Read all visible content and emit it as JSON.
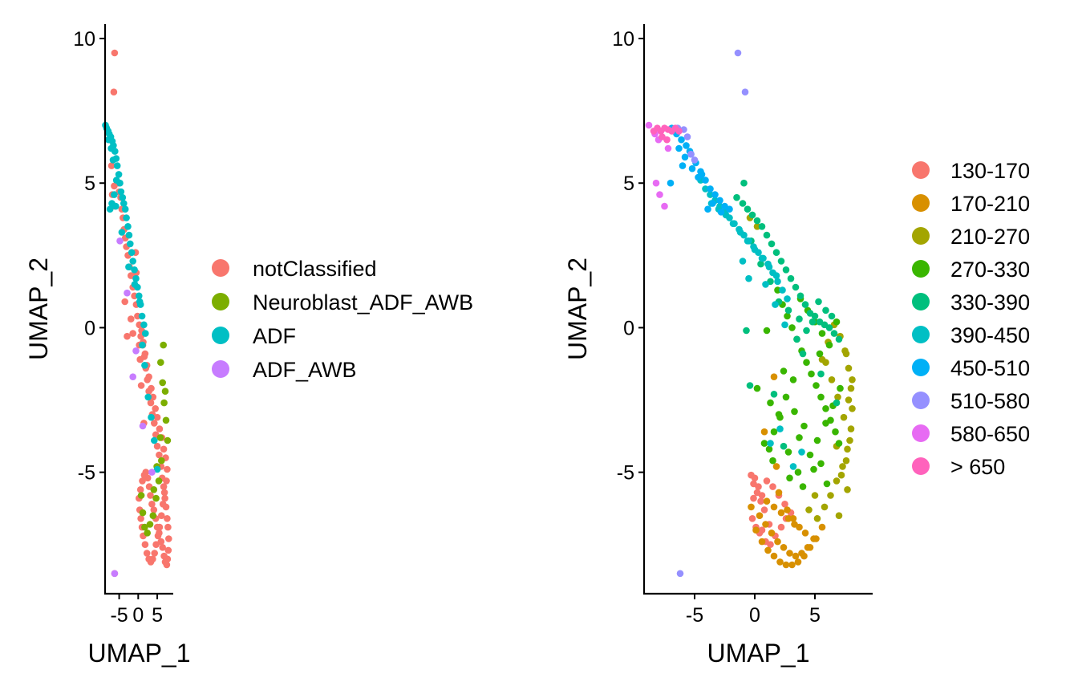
{
  "chart_data": [
    {
      "type": "scatter",
      "title": "",
      "xlabel": "UMAP_1",
      "ylabel": "UMAP_2",
      "xlim": [
        -8.7,
        9.2
      ],
      "ylim": [
        -9.2,
        10.5
      ],
      "xticks": [
        -5,
        0,
        5
      ],
      "xtick_labels": [
        "-5",
        "0",
        "5"
      ],
      "yticks": [
        -5,
        0,
        5,
        10
      ],
      "ytick_labels": [
        "-5",
        "0",
        "5",
        "10"
      ],
      "grid": false,
      "legend_position": "right",
      "legend": [
        {
          "label": "notClassified",
          "color": "#F8766D"
        },
        {
          "label": "Neuroblast_ADF_AWB",
          "color": "#7CAE00"
        },
        {
          "label": "ADF",
          "color": "#00BFC4"
        },
        {
          "label": "ADF_AWB",
          "color": "#C77CFF"
        }
      ],
      "series": [
        {
          "name": "notClassified",
          "color": "#F8766D",
          "x": [
            -6.2,
            -6.4,
            -7.0,
            -6.3,
            -6.8,
            -6.1,
            -5.2,
            -5.0,
            -4.6,
            -4.3,
            -4.0,
            -3.7,
            -3.4,
            -3.1,
            -2.7,
            -2.3,
            -1.9,
            -1.4,
            -1.0,
            -0.5,
            -0.2,
            0.3,
            0.7,
            1.2,
            1.6,
            2.0,
            2.4,
            2.8,
            3.3,
            3.7,
            4.2,
            4.6,
            5.0,
            5.5,
            6.0,
            6.3,
            6.7,
            7.0,
            7.3,
            7.6,
            7.8,
            8.0,
            7.9,
            7.7,
            7.5,
            7.1,
            6.8,
            6.4,
            6.0,
            5.5,
            5.0,
            4.6,
            4.1,
            3.6,
            3.2,
            2.9,
            2.5,
            2.0,
            1.6,
            1.1,
            0.6,
            0.2,
            0.4,
            0.7,
            1.0,
            1.3,
            1.8,
            2.3,
            2.8,
            3.3,
            3.8,
            4.3,
            4.7,
            5.2,
            5.6,
            6.1,
            6.5,
            6.9,
            7.4,
            7.6,
            7.2,
            6.7,
            6.2,
            5.6,
            5.0,
            4.5,
            3.9,
            3.4,
            2.8,
            2.3,
            1.8,
            1.3,
            0.9,
            -1.4,
            -6.2,
            -3.5,
            -2.9,
            -1.9,
            0.3,
            0.5,
            -0.5,
            -0.7,
            0.8,
            1.5
          ],
          "y": [
            9.5,
            8.15,
            5.6,
            4.9,
            4.6,
            4.2,
            5.0,
            4.7,
            4.5,
            4.1,
            3.8,
            3.4,
            3.1,
            2.8,
            2.5,
            2.1,
            1.8,
            1.4,
            1.1,
            0.8,
            0.4,
            0.1,
            -0.3,
            -0.6,
            -1.0,
            -1.4,
            -1.8,
            -2.2,
            -2.6,
            -3.0,
            -3.3,
            -3.7,
            -4.1,
            -4.4,
            -4.8,
            -5.2,
            -5.5,
            -5.9,
            -6.2,
            -6.6,
            -6.9,
            -7.3,
            -7.7,
            -8.0,
            -8.2,
            -8.1,
            -7.9,
            -7.6,
            -7.4,
            -7.1,
            -6.9,
            -6.6,
            -6.3,
            -6.1,
            -5.8,
            -5.5,
            -5.2,
            -5.0,
            -5.1,
            -5.3,
            -5.6,
            -5.9,
            -6.3,
            -6.6,
            -6.9,
            -7.2,
            -7.5,
            -7.8,
            -8.0,
            -8.1,
            -8.0,
            -7.8,
            -7.5,
            -7.2,
            -6.9,
            -6.5,
            -6.1,
            -5.7,
            -5.3,
            -4.9,
            -4.5,
            -4.2,
            -3.8,
            -3.5,
            -3.1,
            -2.8,
            -2.4,
            -2.1,
            -1.7,
            -1.3,
            -0.9,
            -0.5,
            -0.1,
            -0.2,
            -8.5,
            0.9,
            -0.3,
            0.3,
            -0.6,
            -1.1,
            1.9,
            2.6,
            -2.0,
            -3.3
          ]
        },
        {
          "name": "Neuroblast_ADF_AWB",
          "color": "#7CAE00",
          "x": [
            5.9,
            6.4,
            6.8,
            7.3,
            7.7,
            6.1,
            5.4,
            4.7,
            3.9,
            3.1,
            2.4,
            1.7,
            1.2,
            0.8,
            6.6,
            7.1,
            5.8,
            4.9,
            4.1
          ],
          "y": [
            -1.2,
            -1.9,
            -2.6,
            -3.2,
            -3.9,
            -4.6,
            -5.3,
            -5.9,
            -6.5,
            -6.8,
            -7.1,
            -6.9,
            -6.4,
            -5.8,
            -0.6,
            -2.2,
            -3.8,
            -4.8,
            -5.6
          ]
        },
        {
          "name": "ADF",
          "color": "#00BFC4",
          "x": [
            -8.6,
            -8.3,
            -7.9,
            -7.6,
            -7.2,
            -6.8,
            -6.5,
            -6.1,
            -5.8,
            -5.5,
            -5.1,
            -4.8,
            -4.5,
            -4.1,
            -3.8,
            -3.4,
            -3.1,
            -2.7,
            -2.4,
            -2.1,
            -1.7,
            -1.4,
            -1.0,
            -0.6,
            -0.2,
            0.2,
            0.6,
            1.0,
            1.5,
            1.9,
            -7.4,
            -6.9,
            -6.3,
            -5.7,
            -7.8,
            -5.9,
            -4.3,
            -2.5,
            -0.9,
            0.4,
            1.1,
            1.7,
            2.6,
            3.4,
            4.2,
            5.0,
            -7.1,
            -6.6
          ],
          "y": [
            7.0,
            6.9,
            6.8,
            6.7,
            6.6,
            6.45,
            6.3,
            6.1,
            5.85,
            5.6,
            5.3,
            5.0,
            4.7,
            4.5,
            4.3,
            4.1,
            3.8,
            3.5,
            3.2,
            2.9,
            2.6,
            2.3,
            2.0,
            1.7,
            1.4,
            1.1,
            0.8,
            0.4,
            0.1,
            -0.2,
            4.1,
            4.3,
            4.6,
            5.1,
            6.5,
            4.2,
            3.3,
            2.1,
            1.5,
            0.9,
            -0.6,
            -1.3,
            -2.4,
            -3.1,
            -3.9,
            -4.9,
            6.2,
            5.8
          ]
        },
        {
          "name": "ADF_AWB",
          "color": "#C77CFF",
          "x": [
            -1.4,
            -4.8,
            -2.9,
            -0.6,
            1.2,
            3.6,
            -6.2
          ],
          "y": [
            -1.7,
            3.0,
            1.2,
            -0.8,
            -3.4,
            -5.0,
            -8.5
          ]
        }
      ]
    },
    {
      "type": "scatter",
      "title": "",
      "xlabel": "UMAP_1",
      "ylabel": "UMAP_2",
      "xlim": [
        -9.2,
        9.8
      ],
      "ylim": [
        -9.2,
        10.5
      ],
      "xticks": [
        -5,
        0,
        5
      ],
      "xtick_labels": [
        "-5",
        "0",
        "5"
      ],
      "yticks": [
        -5,
        0,
        5,
        10
      ],
      "ytick_labels": [
        "-5",
        "0",
        "5",
        "10"
      ],
      "grid": false,
      "legend_position": "right",
      "legend": [
        {
          "label": "130-170",
          "color": "#F8766D"
        },
        {
          "label": "170-210",
          "color": "#D89000"
        },
        {
          "label": "210-270",
          "color": "#A3A500"
        },
        {
          "label": "270-330",
          "color": "#39B600"
        },
        {
          "label": "330-390",
          "color": "#00BF7D"
        },
        {
          "label": "390-450",
          "color": "#00BFC4"
        },
        {
          "label": "450-510",
          "color": "#00B0F6"
        },
        {
          "label": "510-580",
          "color": "#9590FF"
        },
        {
          "label": "580-650",
          "color": "#E76BF3"
        },
        {
          "label": "> 650",
          "color": "#FF62BC"
        }
      ],
      "series": [
        {
          "name": "130-170",
          "color": "#F8766D",
          "x": [
            -0.3,
            -0.1,
            0.2,
            0.5,
            0.8,
            -0.2,
            0.1,
            0.4,
            0.9,
            1.3,
            1.7,
            2.2,
            2.6,
            0.0,
            0.3,
            0.6,
            1.0,
            1.5,
            2.0,
            2.5,
            3.0,
            1.2,
            0.6,
            -0.1
          ],
          "y": [
            -5.1,
            -5.4,
            -5.7,
            -6.0,
            -6.3,
            -6.6,
            -6.9,
            -7.1,
            -7.4,
            -7.5,
            -7.2,
            -6.9,
            -6.6,
            -5.2,
            -5.5,
            -5.8,
            -5.3,
            -5.5,
            -5.8,
            -6.1,
            -6.4,
            -6.8,
            -7.0,
            -5.9
          ]
        },
        {
          "name": "170-210",
          "color": "#D89000",
          "x": [
            0.1,
            0.6,
            1.1,
            1.6,
            2.1,
            2.6,
            3.1,
            3.6,
            4.1,
            4.6,
            5.1,
            5.6,
            0.4,
            0.9,
            1.4,
            1.9,
            2.4,
            2.9,
            3.4,
            3.9,
            4.4,
            4.9,
            2.7,
            3.2,
            3.7,
            4.2,
            1.0,
            1.6,
            2.2,
            2.8,
            3.3,
            2.0,
            1.8,
            0.8,
            1.6,
            -0.3
          ],
          "y": [
            -7.0,
            -7.4,
            -7.7,
            -7.9,
            -8.1,
            -8.2,
            -8.2,
            -8.1,
            -7.9,
            -7.6,
            -7.3,
            -6.9,
            -6.5,
            -6.8,
            -7.1,
            -7.4,
            -7.6,
            -7.8,
            -7.9,
            -7.8,
            -7.6,
            -7.3,
            -6.3,
            -6.6,
            -6.9,
            -7.1,
            -6.0,
            -6.2,
            -6.4,
            -6.6,
            -6.8,
            -5.7,
            -4.8,
            -3.6,
            -1.7,
            -6.2
          ]
        },
        {
          "name": "210-270",
          "color": "#A3A500",
          "x": [
            5.2,
            5.8,
            6.3,
            6.8,
            7.3,
            7.7,
            8.0,
            8.1,
            8.0,
            7.8,
            7.5,
            7.1,
            6.6,
            6.1,
            5.6,
            7.2,
            7.6,
            7.9,
            7.4,
            6.9,
            6.4,
            5.9,
            7.8,
            8.1,
            7.6,
            6.8,
            -0.4,
            0.2,
            5.0,
            4.5,
            7.0,
            7.7
          ],
          "y": [
            -6.6,
            -6.2,
            -5.8,
            -5.3,
            -4.8,
            -4.2,
            -3.5,
            -2.8,
            -2.1,
            -1.4,
            -0.8,
            -0.3,
            0.1,
            -0.5,
            -1.1,
            -5.1,
            -4.6,
            -3.9,
            -3.1,
            -2.4,
            -1.8,
            -1.2,
            -2.5,
            -1.8,
            -0.9,
            -4.1,
            3.8,
            3.5,
            -5.8,
            -6.3,
            -6.5,
            -5.6
          ]
        },
        {
          "name": "270-330",
          "color": "#39B600",
          "x": [
            1.9,
            2.3,
            2.7,
            3.1,
            3.5,
            3.9,
            4.3,
            4.7,
            5.1,
            5.5,
            5.9,
            6.3,
            6.7,
            7.0,
            6.2,
            5.6,
            5.0,
            4.4,
            3.8,
            3.2,
            2.6,
            2.0,
            1.6,
            1.2,
            4.6,
            5.2,
            5.9,
            6.5,
            7.1,
            3.6,
            4.0,
            2.9,
            1.5,
            0.8,
            2.4,
            3.3,
            4.1,
            4.9,
            5.5,
            6.0,
            1.0,
            0.2,
            1.3,
            2.1,
            2.8,
            3.7,
            6.8,
            5.4
          ],
          "y": [
            1.3,
            0.8,
            0.4,
            0.0,
            -0.4,
            -0.8,
            -1.2,
            -1.6,
            -2.0,
            -2.4,
            -2.8,
            -3.2,
            -3.6,
            -4.0,
            -0.6,
            -0.2,
            0.2,
            0.6,
            1.0,
            -1.8,
            -2.4,
            -3.0,
            -3.6,
            -4.2,
            -4.4,
            -3.9,
            -3.3,
            -2.7,
            -2.1,
            -5.0,
            -5.5,
            -5.2,
            -4.6,
            -4.0,
            -1.5,
            -2.9,
            -3.4,
            -4.9,
            -4.7,
            -5.4,
            -0.1,
            -2.1,
            -2.6,
            -3.1,
            -4.3,
            -3.8,
            0.2,
            -0.9
          ]
        },
        {
          "name": "330-390",
          "color": "#00BF7D",
          "x": [
            -1.5,
            -1.0,
            -0.6,
            -0.2,
            0.2,
            0.6,
            1.0,
            1.4,
            1.8,
            2.2,
            2.6,
            3.0,
            3.4,
            3.8,
            4.2,
            4.6,
            5.0,
            5.4,
            5.8,
            6.2,
            6.6,
            7.0,
            6.4,
            5.9,
            5.3,
            4.8,
            4.3,
            3.7,
            -0.9,
            -0.3,
            0.5,
            1.3,
            2.0,
            2.8,
            3.5,
            4.0,
            5.5,
            6.8,
            -0.7,
            -0.4,
            1.6,
            2.4
          ],
          "y": [
            4.5,
            4.3,
            4.1,
            3.9,
            3.7,
            3.5,
            3.2,
            2.9,
            2.6,
            2.3,
            2.0,
            1.7,
            1.4,
            1.1,
            0.8,
            0.5,
            0.4,
            0.2,
            0.1,
            0.0,
            -0.2,
            -0.4,
            0.4,
            0.6,
            0.9,
            0.2,
            -0.1,
            0.3,
            5.0,
            3.0,
            2.2,
            1.6,
            0.9,
            0.6,
            -0.4,
            -0.9,
            -1.6,
            -2.6,
            -0.1,
            -2.0,
            -2.3,
            -4.1
          ]
        },
        {
          "name": "390-450",
          "color": "#00BFC4",
          "x": [
            -4.5,
            -4.1,
            -3.7,
            -3.3,
            -2.9,
            -2.5,
            -2.1,
            -1.7,
            -1.3,
            -0.9,
            -0.5,
            -0.1,
            0.3,
            0.7,
            1.1,
            1.5,
            1.9,
            2.3,
            2.7,
            -3.6,
            -3.0,
            -2.4,
            -1.8,
            -1.2,
            -0.6,
            0.0,
            0.6,
            1.2,
            1.8,
            -1.0,
            -0.5,
            0.9,
            1.7,
            2.5,
            2.1,
            1.3,
            3.2,
            3.9
          ],
          "y": [
            5.1,
            4.8,
            4.6,
            4.4,
            4.2,
            4.0,
            3.8,
            3.6,
            3.4,
            3.2,
            3.0,
            2.8,
            2.6,
            2.4,
            2.2,
            1.9,
            1.6,
            1.3,
            1.0,
            4.3,
            4.1,
            3.9,
            3.6,
            3.3,
            3.0,
            2.7,
            2.4,
            2.1,
            1.8,
            2.3,
            1.7,
            1.5,
            0.8,
            0.1,
            -3.5,
            -4.0,
            -4.8,
            -4.3
          ]
        },
        {
          "name": "450-510",
          "color": "#00B0F6",
          "x": [
            -6.9,
            -6.5,
            -6.1,
            -5.7,
            -5.3,
            -4.9,
            -4.5,
            -4.1,
            -3.7,
            -3.3,
            -2.9,
            -2.5,
            -2.1,
            -6.3,
            -5.8,
            -5.2,
            -4.7,
            -7.0,
            -6.0,
            -5.4,
            -4.4,
            -3.5,
            -2.8,
            -3.9
          ],
          "y": [
            6.9,
            6.7,
            6.5,
            6.3,
            6.0,
            5.7,
            5.4,
            5.1,
            4.8,
            4.6,
            4.4,
            4.2,
            4.1,
            6.2,
            5.9,
            5.5,
            5.2,
            5.0,
            5.6,
            6.1,
            5.3,
            4.3,
            4.0,
            4.1
          ]
        },
        {
          "name": "510-580",
          "color": "#9590FF",
          "x": [
            -1.4,
            -0.8,
            -6.2,
            -5.9,
            -5.6,
            -5.3,
            -5.0,
            -6.4
          ],
          "y": [
            9.5,
            8.15,
            -8.5,
            6.85,
            6.6,
            6.0,
            5.8,
            6.9
          ]
        },
        {
          "name": "580-650",
          "color": "#E76BF3",
          "x": [
            -8.8,
            -8.3,
            -8.2,
            -7.9,
            -7.5,
            -7.2,
            -8.0
          ],
          "y": [
            7.0,
            6.7,
            5.0,
            4.6,
            4.2,
            6.2,
            6.5
          ]
        },
        {
          "name": "> 650",
          "color": "#FF62BC",
          "x": [
            -8.4,
            -8.1,
            -7.8,
            -7.5,
            -7.2,
            -6.9,
            -6.6,
            -6.3,
            -7.7,
            -7.3
          ],
          "y": [
            6.8,
            6.9,
            6.8,
            6.9,
            6.85,
            6.8,
            6.9,
            6.8,
            6.6,
            6.5
          ]
        }
      ]
    }
  ]
}
